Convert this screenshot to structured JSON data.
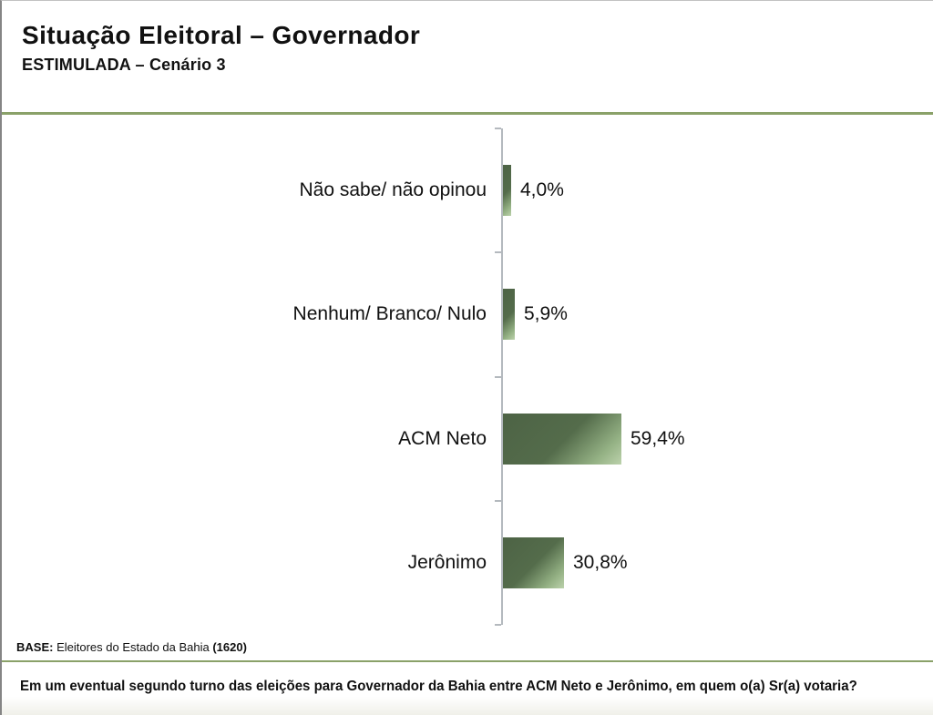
{
  "header": {
    "title": "Situação Eleitoral – Governador",
    "subtitle": "ESTIMULADA – Cenário 3"
  },
  "chart_data": {
    "type": "bar",
    "orientation": "horizontal",
    "title": "",
    "xlabel": "",
    "ylabel": "",
    "grid": false,
    "legend": false,
    "xlim": [
      0,
      100
    ],
    "categories": [
      "Não sabe/ não opinou",
      "Nenhum/ Branco/ Nulo",
      "ACM Neto",
      "Jerônimo"
    ],
    "values": [
      4.0,
      5.9,
      59.4,
      30.8
    ],
    "value_labels": [
      "4,0%",
      "5,9%",
      "59,4%",
      "30,8%"
    ],
    "bar_color_dark": "#4d6345",
    "bar_color_light": "#bcd2ac",
    "axis_color": "#b4b9be"
  },
  "footer": {
    "base_label": "BASE:",
    "base_text": " Eleitores do Estado da Bahia ",
    "base_count": "(1620)",
    "question": "Em um eventual segundo turno das eleições para Governador da Bahia entre ACM Neto e Jerônimo, em quem o(a) Sr(a) votaria?"
  },
  "colors": {
    "divider_green": "#8aa169"
  }
}
